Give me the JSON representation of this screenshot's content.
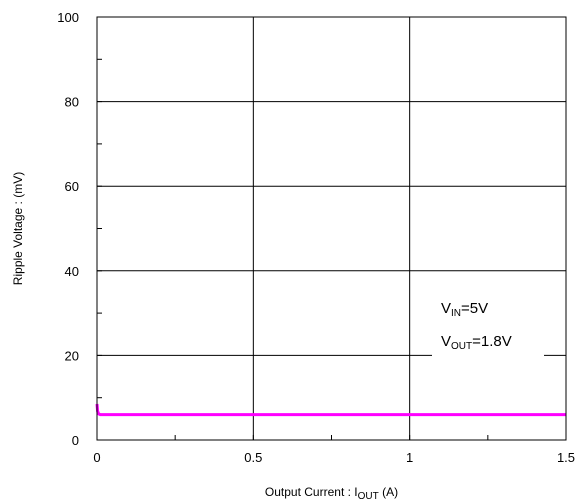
{
  "chart_data": {
    "type": "line",
    "xlabel": {
      "main": "Output Current : I",
      "sub": "OUT",
      "tail": " (A)"
    },
    "ylabel": "Ripple Voltage : (mV)",
    "xlim": [
      0,
      1.5
    ],
    "ylim": [
      0,
      100
    ],
    "x_ticks": [
      0,
      0.5,
      1,
      1.5
    ],
    "x_tick_labels": [
      "0",
      "0.5",
      "1",
      "1.5"
    ],
    "y_ticks": [
      0,
      20,
      40,
      60,
      80,
      100
    ],
    "y_tick_labels": [
      "0",
      "20",
      "40",
      "60",
      "80",
      "100"
    ],
    "grid": true,
    "series": [
      {
        "color": "#ff00ff",
        "x": [
          0,
          0.002,
          0.005,
          0.01,
          0.02,
          0.1,
          0.5,
          1.0,
          1.5
        ],
        "y": [
          8.5,
          6.8,
          6.2,
          6.0,
          6.0,
          6.0,
          6.0,
          6.0,
          6.0
        ]
      }
    ],
    "annotations": [
      {
        "main": "V",
        "sub": "IN",
        "tail": "=5V"
      },
      {
        "main": "V",
        "sub": "OUT",
        "tail": "=1.8V"
      }
    ]
  }
}
